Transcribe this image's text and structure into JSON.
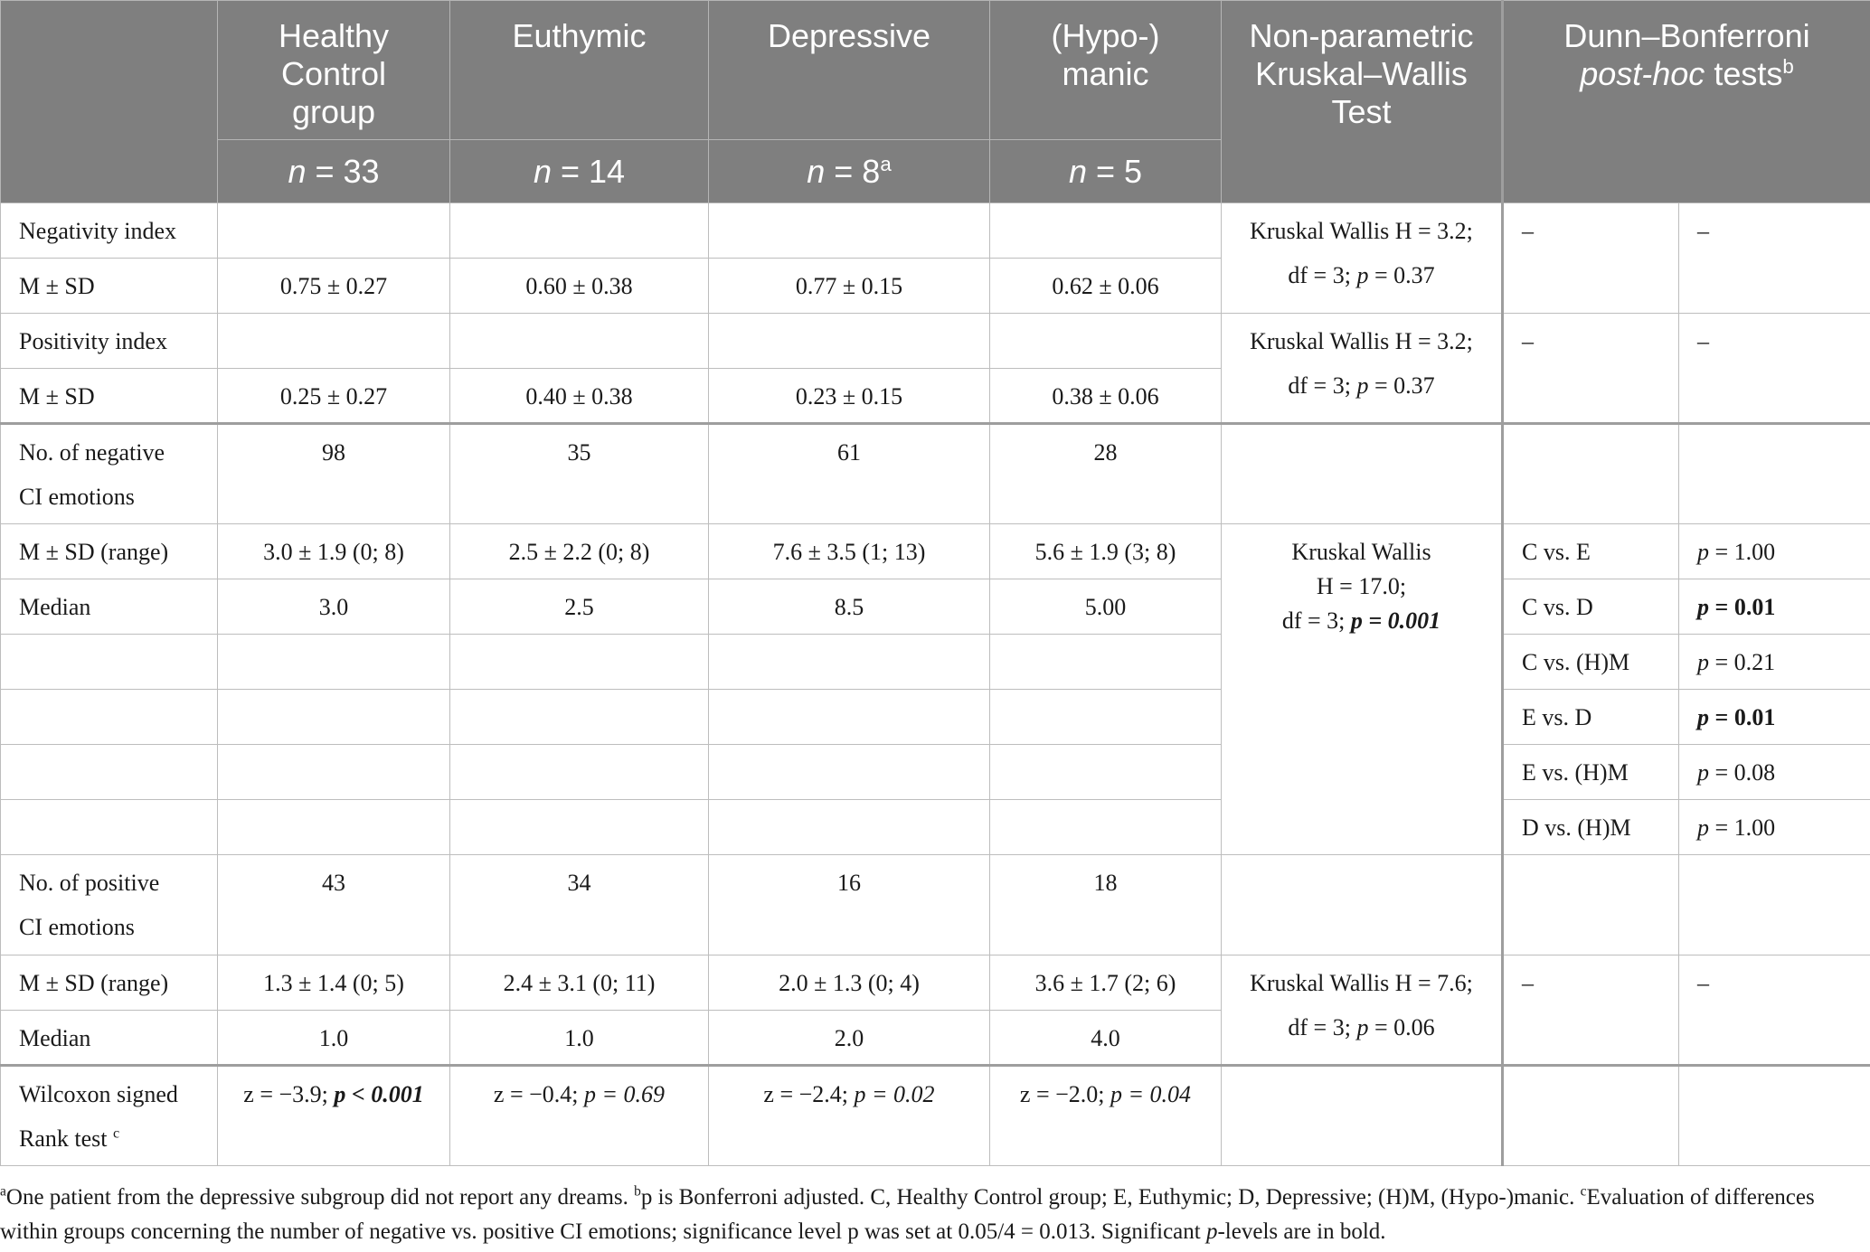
{
  "header": {
    "groups": [
      {
        "label": "Healthy Control group",
        "n_prefix": "n",
        "n_value": " = 33",
        "n_sup": ""
      },
      {
        "label": "Euthymic",
        "n_prefix": "n",
        "n_value": " = 14",
        "n_sup": ""
      },
      {
        "label": "Depressive",
        "n_prefix": "n",
        "n_value": " = 8",
        "n_sup": "a"
      },
      {
        "label": "(Hypo-) manic",
        "n_prefix": "n",
        "n_value": " = 5",
        "n_sup": ""
      }
    ],
    "kw_label": "Non-parametric Kruskal–Wallis Test",
    "dunn_label_1": "Dunn–Bonferroni",
    "dunn_label_2_italic": "post-hoc",
    "dunn_label_2_rest": " tests",
    "dunn_sup": "b"
  },
  "rows": {
    "neg_index_label": "Negativity index",
    "neg_index_msd_label": "M ± SD",
    "neg_index_values": [
      "0.75 ± 0.27",
      "0.60 ± 0.38",
      "0.77 ± 0.15",
      "0.62 ± 0.06"
    ],
    "neg_index_kw_1": "Kruskal Wallis H = 3.2;",
    "neg_index_kw_2a": "df = 3; ",
    "neg_index_kw_2p": "p",
    "neg_index_kw_2b": " = 0.37",
    "neg_index_dunn": [
      "–",
      "–"
    ],
    "pos_index_label": "Positivity index",
    "pos_index_msd_label": "M ± SD",
    "pos_index_values": [
      "0.25 ± 0.27",
      "0.40 ± 0.38",
      "0.23 ± 0.15",
      "0.38 ± 0.06"
    ],
    "pos_index_kw_1": "Kruskal Wallis H = 3.2;",
    "pos_index_kw_2a": "df = 3; ",
    "pos_index_kw_2p": "p",
    "pos_index_kw_2b": " = 0.37",
    "pos_index_dunn": [
      "–",
      "–"
    ],
    "neg_ci_label_1": "No. of negative",
    "neg_ci_label_2": "CI emotions",
    "neg_ci_counts": [
      "98",
      "35",
      "61",
      "28"
    ],
    "neg_ci_msd_label": "M ± SD (range)",
    "neg_ci_msd": [
      "3.0 ± 1.9 (0; 8)",
      "2.5 ± 2.2 (0; 8)",
      "7.6 ± 3.5 (1; 13)",
      "5.6 ± 1.9 (3; 8)"
    ],
    "neg_ci_median_label": "Median",
    "neg_ci_median": [
      "3.0",
      "2.5",
      "8.5",
      "5.00"
    ],
    "neg_ci_kw_1": "Kruskal Wallis",
    "neg_ci_kw_2": "H = 17.0;",
    "neg_ci_kw_3a": "df = 3; ",
    "neg_ci_kw_3b": "p = 0.001",
    "neg_ci_posthoc": [
      {
        "pair": "C vs. E",
        "p_italic": "p",
        "p_rest": " = 1.00",
        "bold": false
      },
      {
        "pair": "C vs. D",
        "p_italic": "p",
        "p_rest": " = 0.01",
        "bold": true
      },
      {
        "pair": "C vs. (H)M",
        "p_italic": "p",
        "p_rest": " = 0.21",
        "bold": false
      },
      {
        "pair": "E vs. D",
        "p_italic": "p",
        "p_rest": " = 0.01",
        "bold": true
      },
      {
        "pair": "E vs. (H)M",
        "p_italic": "p",
        "p_rest": " = 0.08",
        "bold": false
      },
      {
        "pair": "D vs. (H)M",
        "p_italic": "p",
        "p_rest": " = 1.00",
        "bold": false
      }
    ],
    "pos_ci_label_1": "No. of positive",
    "pos_ci_label_2": "CI emotions",
    "pos_ci_counts": [
      "43",
      "34",
      "16",
      "18"
    ],
    "pos_ci_msd_label": "M ± SD (range)",
    "pos_ci_msd": [
      "1.3 ± 1.4 (0; 5)",
      "2.4 ± 3.1 (0; 11)",
      "2.0 ± 1.3 (0; 4)",
      "3.6 ± 1.7 (2; 6)"
    ],
    "pos_ci_median_label": "Median",
    "pos_ci_median": [
      "1.0",
      "1.0",
      "2.0",
      "4.0"
    ],
    "pos_ci_kw_1": "Kruskal Wallis H = 7.6;",
    "pos_ci_kw_2a": "df = 3; ",
    "pos_ci_kw_2p": "p",
    "pos_ci_kw_2b": " = 0.06",
    "pos_ci_dunn": [
      "–",
      "–"
    ],
    "wilcoxon_label_1": "Wilcoxon signed",
    "wilcoxon_label_2": "Rank test ",
    "wilcoxon_sup": "c",
    "wilcoxon": [
      {
        "z": "z = −3.9; ",
        "p": "p < 0.001",
        "bold": true
      },
      {
        "z": "z = −0.4; ",
        "p": "p = 0.69",
        "bold": false
      },
      {
        "z": "z = −2.4; ",
        "p": "p = 0.02",
        "bold": false
      },
      {
        "z": "z = −2.0; ",
        "p": "p = 0.04",
        "bold": false
      }
    ]
  },
  "footnote": {
    "a_sup": "a",
    "a_text": "One patient from the depressive subgroup did not report any dreams. ",
    "b_sup": "b",
    "b_text": "p is Bonferroni adjusted. C, Healthy Control group; E, Euthymic; D, Depressive; (H)M, (Hypo-)manic. ",
    "c_sup": "c",
    "c_text": "Evaluation of differences within groups concerning the number of negative vs. positive CI emotions; significance level p was set at 0.05/4 = 0.013. Significant ",
    "c_italic": "p",
    "c_text_end": "-levels are in bold."
  }
}
